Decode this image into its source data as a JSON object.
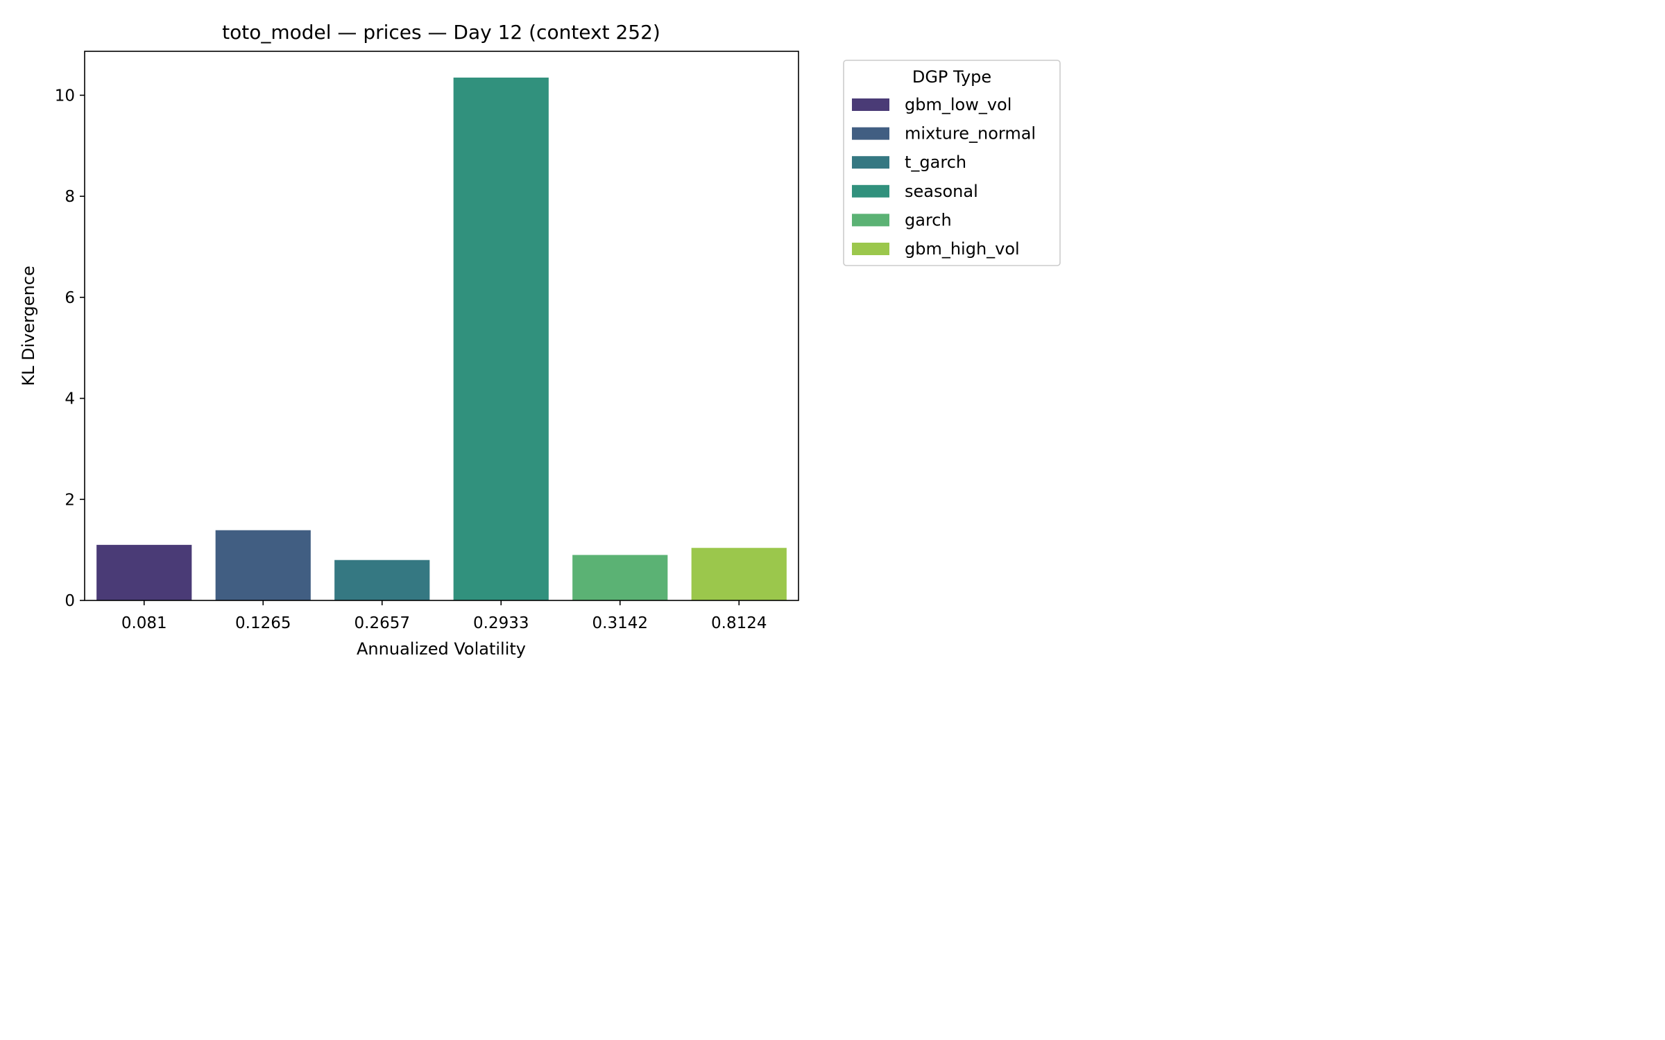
{
  "chart_data": {
    "type": "bar",
    "title": "toto_model — prices — Day 12 (context 252)",
    "xlabel": "Annualized Volatility",
    "ylabel": "KL Divergence",
    "categories": [
      "0.081",
      "0.1265",
      "0.2657",
      "0.2933",
      "0.3142",
      "0.8124"
    ],
    "values": [
      1.1,
      1.39,
      0.8,
      10.35,
      0.9,
      1.04
    ],
    "series_names": [
      "gbm_low_vol",
      "mixture_normal",
      "t_garch",
      "seasonal",
      "garch",
      "gbm_high_vol"
    ],
    "colors": [
      "#4a3b76",
      "#415e82",
      "#357882",
      "#31917d",
      "#5bb274",
      "#9bc74c"
    ],
    "ylim": [
      0,
      10.87
    ],
    "yticks": [
      0,
      2,
      4,
      6,
      8,
      10
    ],
    "legend": {
      "title": "DGP Type",
      "placement": "outside-top-right"
    },
    "grid": false
  }
}
